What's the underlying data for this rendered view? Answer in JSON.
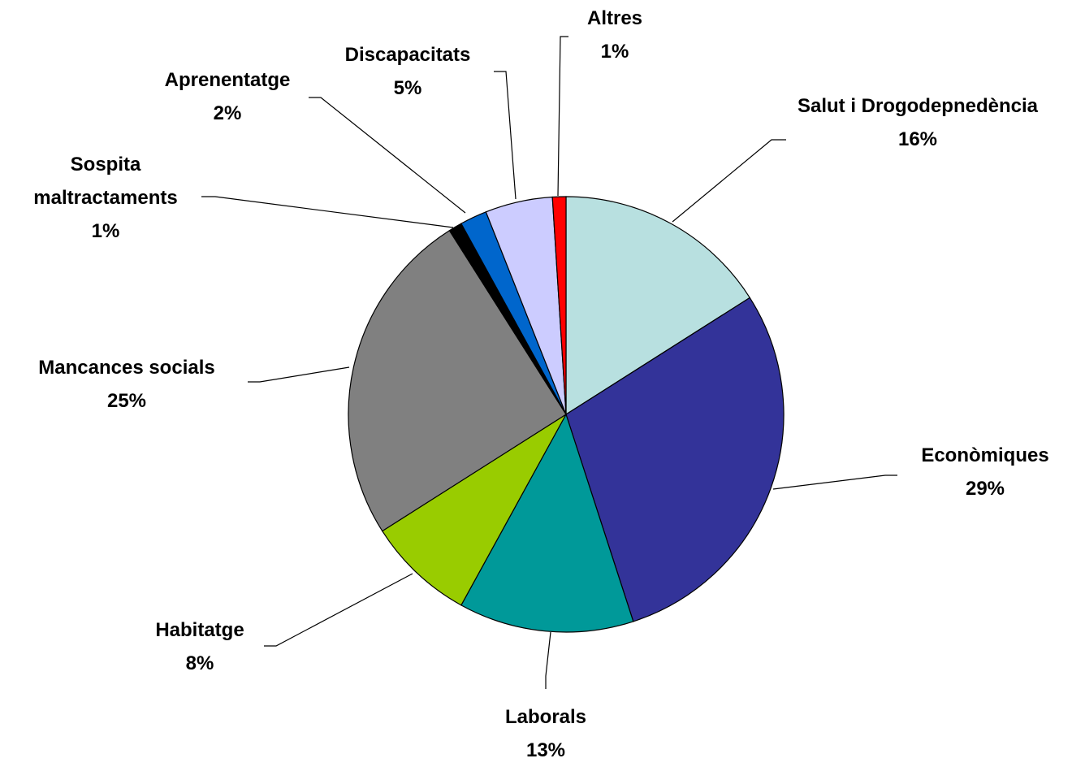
{
  "chart_data": {
    "type": "pie",
    "categories": [
      "Salut i Drogodepnedència",
      "Econòmiques",
      "Laborals",
      "Habitatge",
      "Mancances socials",
      "Sospita maltractaments",
      "Aprenentatge",
      "Discapacitats",
      "Altres"
    ],
    "values": [
      16,
      29,
      13,
      8,
      25,
      1,
      2,
      5,
      1
    ],
    "value_labels": [
      "16%",
      "29%",
      "13%",
      "8%",
      "25%",
      "1%",
      "2%",
      "5%",
      "1%"
    ],
    "colors": [
      "#b8e0e0",
      "#333399",
      "#009999",
      "#99cc00",
      "#808080",
      "#000000",
      "#0066cc",
      "#ccccff",
      "#ff0000"
    ]
  }
}
